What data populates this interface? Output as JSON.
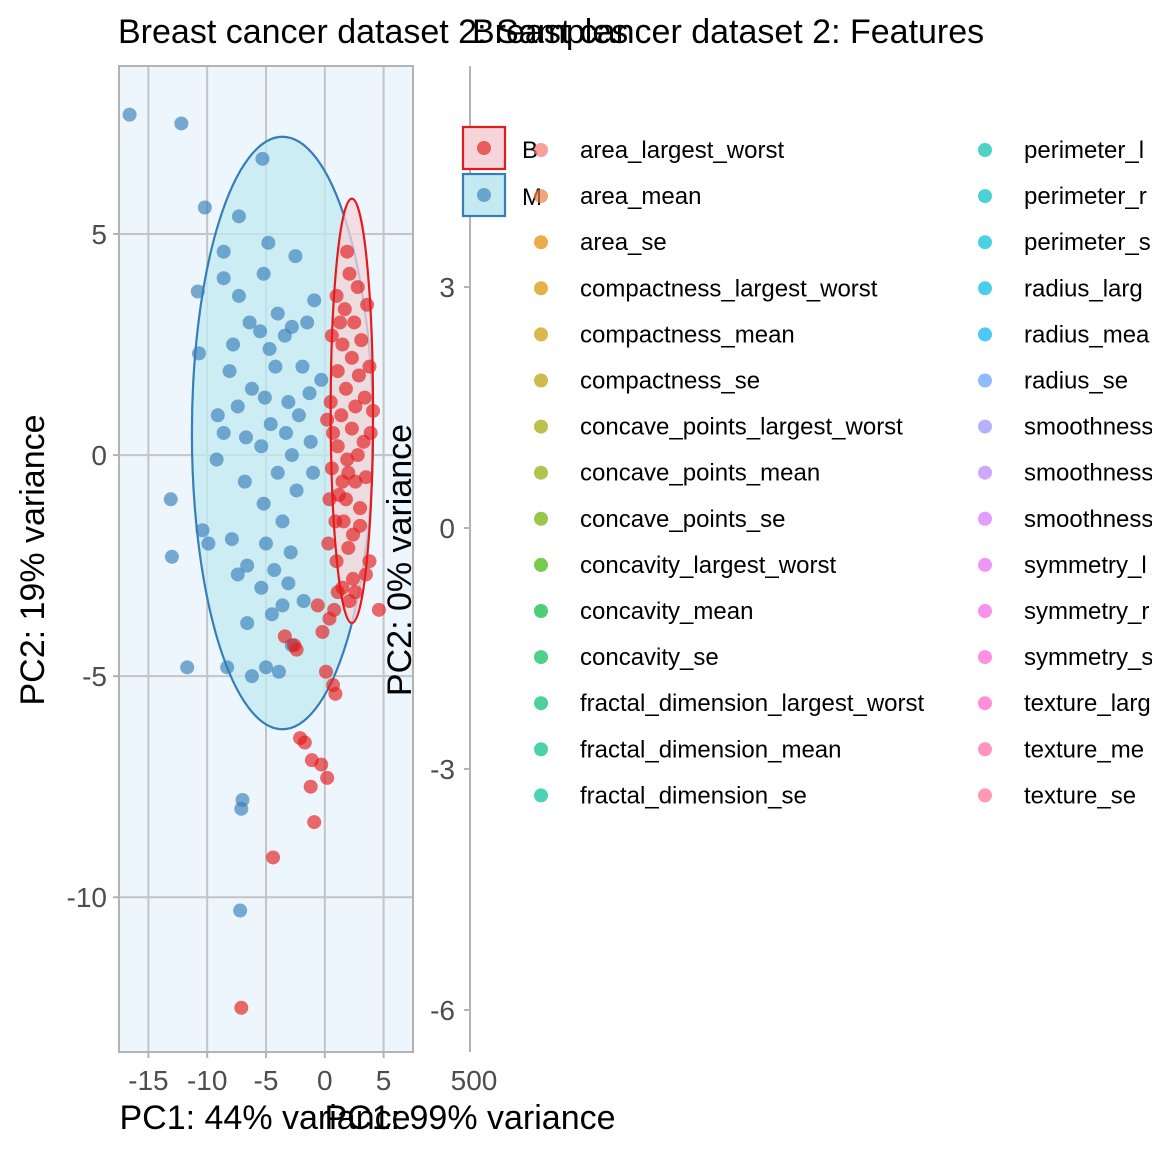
{
  "chart_data": [
    {
      "type": "scatter",
      "title": "Breast cancer dataset 2: Samples",
      "xlabel": "PC1: 44% variance",
      "ylabel": "PC2: 19% variance",
      "xlim": [
        -17.5,
        7.5
      ],
      "ylim": [
        -13.5,
        8.8
      ],
      "xticks": [
        -15,
        -10,
        -5,
        0,
        5
      ],
      "yticks": [
        -10,
        -5,
        0,
        5
      ],
      "xtick_labels": [
        "-15",
        "-10",
        "-5",
        "0",
        "5"
      ],
      "ytick_labels": [
        "-10",
        "-5",
        "0",
        "5"
      ],
      "background": "#eef6fd",
      "grid": true,
      "legend_position": "right",
      "series": [
        {
          "name": "B",
          "color": "#e41a1c",
          "ellipse_fill": "#f5d5da",
          "ellipse": {
            "cx": 2.3,
            "cy": 1.0,
            "rx": 1.8,
            "ry": 4.8
          },
          "points": [
            [
              -7.1,
              -12.5
            ],
            [
              -4.4,
              -9.1
            ],
            [
              -0.9,
              -8.3
            ],
            [
              -1.2,
              -7.5
            ],
            [
              0.2,
              -7.3
            ],
            [
              -1.1,
              -6.9
            ],
            [
              -0.3,
              -7.0
            ],
            [
              -1.7,
              -6.5
            ],
            [
              -2.1,
              -6.4
            ],
            [
              0.9,
              -5.4
            ],
            [
              0.7,
              -5.2
            ],
            [
              0.1,
              -4.9
            ],
            [
              -2.4,
              -4.4
            ],
            [
              -3.4,
              -4.1
            ],
            [
              -2.6,
              -4.3
            ],
            [
              -0.2,
              -4.0
            ],
            [
              0.8,
              -3.5
            ],
            [
              2.1,
              -3.3
            ],
            [
              0.4,
              -3.7
            ],
            [
              1.5,
              -3.0
            ],
            [
              4.6,
              -3.5
            ],
            [
              -0.6,
              -3.4
            ],
            [
              1.1,
              -3.1
            ],
            [
              2.6,
              -3.1
            ],
            [
              2.4,
              -2.8
            ],
            [
              1.0,
              -2.4
            ],
            [
              3.5,
              -2.7
            ],
            [
              2.0,
              -2.1
            ],
            [
              0.3,
              -2.0
            ],
            [
              3.8,
              -2.4
            ],
            [
              1.6,
              -1.5
            ],
            [
              2.4,
              -1.8
            ],
            [
              0.9,
              -1.5
            ],
            [
              1.8,
              -1.0
            ],
            [
              3.0,
              -1.2
            ],
            [
              0.4,
              -1.0
            ],
            [
              1.5,
              -0.6
            ],
            [
              2.6,
              -0.6
            ],
            [
              3.5,
              -0.5
            ],
            [
              0.6,
              -0.3
            ],
            [
              1.9,
              -0.1
            ],
            [
              2.8,
              0.0
            ],
            [
              1.1,
              0.2
            ],
            [
              3.3,
              0.3
            ],
            [
              0.7,
              0.5
            ],
            [
              2.3,
              0.6
            ],
            [
              3.9,
              0.5
            ],
            [
              1.4,
              0.9
            ],
            [
              2.6,
              1.1
            ],
            [
              0.5,
              1.2
            ],
            [
              3.4,
              1.3
            ],
            [
              1.8,
              1.5
            ],
            [
              2.9,
              1.8
            ],
            [
              1.1,
              1.9
            ],
            [
              3.8,
              2.0
            ],
            [
              2.3,
              2.2
            ],
            [
              1.5,
              2.5
            ],
            [
              3.1,
              2.6
            ],
            [
              0.6,
              2.7
            ],
            [
              2.5,
              3.0
            ],
            [
              1.7,
              3.3
            ],
            [
              3.6,
              3.4
            ],
            [
              2.8,
              3.8
            ],
            [
              1.0,
              3.6
            ],
            [
              2.1,
              4.1
            ],
            [
              1.9,
              4.6
            ],
            [
              1.3,
              3.0
            ],
            [
              2.0,
              -0.4
            ],
            [
              0.2,
              0.8
            ],
            [
              3.0,
              -1.6
            ],
            [
              1.2,
              -0.9
            ],
            [
              4.1,
              1.0
            ]
          ]
        },
        {
          "name": "M",
          "color": "#377eb8",
          "ellipse_fill": "#c2eaf0",
          "ellipse": {
            "cx": -3.6,
            "cy": 0.5,
            "rx": 7.7,
            "ry": 6.7
          },
          "points": [
            [
              -16.6,
              7.7
            ],
            [
              -12.2,
              7.5
            ],
            [
              -5.3,
              6.7
            ],
            [
              -10.2,
              5.6
            ],
            [
              -7.3,
              5.4
            ],
            [
              -8.6,
              4.6
            ],
            [
              -4.8,
              4.8
            ],
            [
              -2.5,
              4.5
            ],
            [
              -8.6,
              4.0
            ],
            [
              -5.2,
              4.1
            ],
            [
              -10.8,
              3.7
            ],
            [
              -4.0,
              3.2
            ],
            [
              -7.3,
              3.6
            ],
            [
              -1.5,
              3.0
            ],
            [
              -0.9,
              3.5
            ],
            [
              -6.4,
              3.0
            ],
            [
              -3.4,
              2.7
            ],
            [
              -7.8,
              2.5
            ],
            [
              -2.8,
              2.9
            ],
            [
              -5.5,
              2.8
            ],
            [
              -1.9,
              2.0
            ],
            [
              -4.2,
              2.0
            ],
            [
              -8.1,
              1.9
            ],
            [
              -10.7,
              2.3
            ],
            [
              -6.2,
              1.5
            ],
            [
              -3.1,
              1.2
            ],
            [
              -5.1,
              1.3
            ],
            [
              -1.3,
              1.4
            ],
            [
              -7.4,
              1.1
            ],
            [
              -2.2,
              0.9
            ],
            [
              -9.1,
              0.9
            ],
            [
              -4.6,
              0.7
            ],
            [
              -3.3,
              0.5
            ],
            [
              -6.7,
              0.4
            ],
            [
              -8.6,
              0.5
            ],
            [
              -2.8,
              0.0
            ],
            [
              -5.4,
              0.2
            ],
            [
              -1.2,
              0.3
            ],
            [
              -9.2,
              -0.1
            ],
            [
              -4.0,
              -0.4
            ],
            [
              -6.8,
              -0.6
            ],
            [
              -2.4,
              -0.8
            ],
            [
              -13.1,
              -1.0
            ],
            [
              -5.2,
              -1.1
            ],
            [
              -3.6,
              -1.5
            ],
            [
              -10.4,
              -1.7
            ],
            [
              -7.9,
              -1.9
            ],
            [
              -5.0,
              -2.0
            ],
            [
              -2.9,
              -2.2
            ],
            [
              -9.9,
              -2.0
            ],
            [
              -6.6,
              -2.5
            ],
            [
              -13.0,
              -2.3
            ],
            [
              -4.3,
              -2.6
            ],
            [
              -7.4,
              -2.7
            ],
            [
              -3.1,
              -2.9
            ],
            [
              -5.4,
              -3.0
            ],
            [
              -1.8,
              -3.3
            ],
            [
              -4.5,
              -3.6
            ],
            [
              -6.6,
              -3.8
            ],
            [
              -3.6,
              -3.4
            ],
            [
              -11.7,
              -4.8
            ],
            [
              -5.0,
              -4.8
            ],
            [
              -2.8,
              -4.3
            ],
            [
              -8.3,
              -4.8
            ],
            [
              -3.9,
              -4.9
            ],
            [
              -6.2,
              -5.0
            ],
            [
              -7.0,
              -7.8
            ],
            [
              -7.1,
              -8.0
            ],
            [
              -7.2,
              -10.3
            ],
            [
              -0.3,
              1.7
            ],
            [
              -1.0,
              -0.4
            ],
            [
              -4.7,
              2.4
            ]
          ]
        }
      ]
    },
    {
      "type": "scatter",
      "title": "Breast cancer dataset 2: Features",
      "xlabel": "PC1: 99% variance",
      "ylabel": "PC2: 0% variance",
      "x_tick_overlap_text": "500",
      "yticks": [
        3,
        0,
        -3,
        -6
      ],
      "ytick_labels": [
        "3",
        "0",
        "-3",
        "-6"
      ],
      "legend_markers": [
        {
          "name": "B",
          "color": "#e41a1c",
          "fill": "#f5d5da"
        },
        {
          "name": "M",
          "color": "#377eb8",
          "fill": "#c2eaf0"
        }
      ],
      "features": [
        {
          "name": "area_largest_worst",
          "color": "#F8766D"
        },
        {
          "name": "area_mean",
          "color": "#EE8043"
        },
        {
          "name": "area_se",
          "color": "#E38900"
        },
        {
          "name": "compactness_largest_worst",
          "color": "#D89000"
        },
        {
          "name": "compactness_mean",
          "color": "#C99800"
        },
        {
          "name": "compactness_se",
          "color": "#B89E00"
        },
        {
          "name": "concave_points_largest_worst",
          "color": "#A3A500"
        },
        {
          "name": "concave_points_mean",
          "color": "#8BAB00"
        },
        {
          "name": "concave_points_se",
          "color": "#6BB100"
        },
        {
          "name": "concavity_largest_worst",
          "color": "#39B600"
        },
        {
          "name": "concavity_mean",
          "color": "#00BA38"
        },
        {
          "name": "concavity_se",
          "color": "#00BC59"
        },
        {
          "name": "fractal_dimension_largest_worst",
          "color": "#00BE70"
        },
        {
          "name": "fractal_dimension_mean",
          "color": "#00BF84"
        },
        {
          "name": "fractal_dimension_se",
          "color": "#00C097"
        },
        {
          "name": "perimeter_l",
          "color": "#00C1AA"
        },
        {
          "name": "perimeter_r",
          "color": "#00BFC4"
        },
        {
          "name": "perimeter_s",
          "color": "#00BCD8"
        },
        {
          "name": "radius_larg",
          "color": "#00B9E3"
        },
        {
          "name": "radius_mea",
          "color": "#00B0F6"
        },
        {
          "name": "radius_se",
          "color": "#619CFF"
        },
        {
          "name": "smoothness",
          "color": "#9590FF"
        },
        {
          "name": "smoothness",
          "color": "#B983FF"
        },
        {
          "name": "smoothness",
          "color": "#D575FE"
        },
        {
          "name": "symmetry_l",
          "color": "#E76BF3"
        },
        {
          "name": "symmetry_r",
          "color": "#F564E3"
        },
        {
          "name": "symmetry_s",
          "color": "#FC61D5"
        },
        {
          "name": "texture_larg",
          "color": "#FF61C3"
        },
        {
          "name": "texture_me",
          "color": "#FF67A4"
        },
        {
          "name": "texture_se",
          "color": "#FF6C90"
        }
      ]
    }
  ]
}
